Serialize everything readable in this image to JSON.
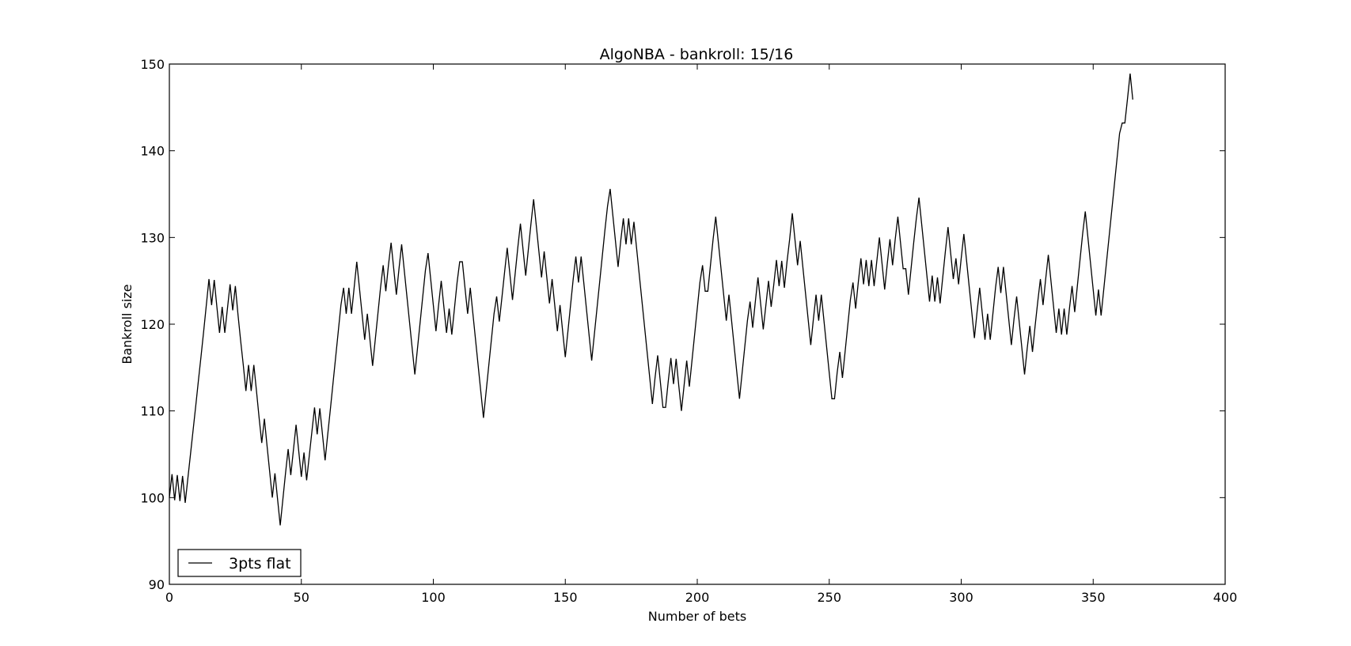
{
  "chart_data": {
    "type": "line",
    "title": "AlgoNBA - bankroll: 15/16",
    "xlabel": "Number of bets",
    "ylabel": "Bankroll size",
    "xlim": [
      0,
      400
    ],
    "ylim": [
      90,
      150
    ],
    "xticks": [
      0,
      50,
      100,
      150,
      200,
      250,
      300,
      350,
      400
    ],
    "yticks": [
      90,
      100,
      110,
      120,
      130,
      140,
      150
    ],
    "grid": false,
    "legend_position": "lower-left",
    "colors": {
      "line": "#000000",
      "frame": "#000000",
      "background": "#ffffff"
    },
    "series": [
      {
        "name": "3pts flat",
        "x": [
          0,
          1,
          2,
          3,
          4,
          5,
          6,
          7,
          8,
          9,
          10,
          11,
          12,
          13,
          14,
          15,
          16,
          17,
          18,
          19,
          20,
          21,
          22,
          23,
          24,
          25,
          26,
          27,
          28,
          29,
          30,
          31,
          32,
          33,
          34,
          35,
          36,
          37,
          38,
          39,
          40,
          41,
          42,
          43,
          44,
          45,
          46,
          47,
          48,
          49,
          50,
          51,
          52,
          53,
          54,
          55,
          56,
          57,
          58,
          59,
          60,
          61,
          62,
          63,
          64,
          65,
          66,
          67,
          68,
          69,
          70,
          71,
          72,
          73,
          74,
          75,
          76,
          77,
          78,
          79,
          80,
          81,
          82,
          83,
          84,
          85,
          86,
          87,
          88,
          89,
          90,
          91,
          92,
          93,
          94,
          95,
          96,
          97,
          98,
          99,
          100,
          101,
          102,
          103,
          104,
          105,
          106,
          107,
          108,
          109,
          110,
          111,
          112,
          113,
          114,
          115,
          116,
          117,
          118,
          119,
          120,
          121,
          122,
          123,
          124,
          125,
          126,
          127,
          128,
          129,
          130,
          131,
          132,
          133,
          134,
          135,
          136,
          137,
          138,
          139,
          140,
          141,
          142,
          143,
          144,
          145,
          146,
          147,
          148,
          149,
          150,
          151,
          152,
          153,
          154,
          155,
          156,
          157,
          158,
          159,
          160,
          161,
          162,
          163,
          164,
          165,
          166,
          167,
          168,
          169,
          170,
          171,
          172,
          173,
          174,
          175,
          176,
          177,
          178,
          179,
          180,
          181,
          182,
          183,
          184,
          185,
          186,
          187,
          188,
          189,
          190,
          191,
          192,
          193,
          194,
          195,
          196,
          197,
          198,
          199,
          200,
          201,
          202,
          203,
          204,
          205,
          206,
          207,
          208,
          209,
          210,
          211,
          212,
          213,
          214,
          215,
          216,
          217,
          218,
          219,
          220,
          221,
          222,
          223,
          224,
          225,
          226,
          227,
          228,
          229,
          230,
          231,
          232,
          233,
          234,
          235,
          236,
          237,
          238,
          239,
          240,
          241,
          242,
          243,
          244,
          245,
          246,
          247,
          248,
          249,
          250,
          251,
          252,
          253,
          254,
          255,
          256,
          257,
          258,
          259,
          260,
          261,
          262,
          263,
          264,
          265,
          266,
          267,
          268,
          269,
          270,
          271,
          272,
          273,
          274,
          275,
          276,
          277,
          278,
          279,
          280,
          281,
          282,
          283,
          284,
          285,
          286,
          287,
          288,
          289,
          290,
          291,
          292,
          293,
          294,
          295,
          296,
          297,
          298,
          299,
          300,
          301,
          302,
          303,
          304,
          305,
          306,
          307,
          308,
          309,
          310,
          311,
          312,
          313,
          314,
          315,
          316,
          317,
          318,
          319,
          320,
          321,
          322,
          323,
          324,
          325,
          326,
          327,
          328,
          329,
          330,
          331,
          332,
          333,
          334,
          335,
          336,
          337,
          338,
          339,
          340,
          341,
          342,
          343,
          344,
          345,
          346,
          347,
          348,
          349,
          350,
          351,
          352,
          353,
          354,
          355,
          356,
          357,
          358,
          359,
          360,
          361,
          362,
          363,
          364,
          365
        ],
        "y": [
          100.0,
          102.7,
          99.7,
          102.6,
          99.6,
          102.5,
          99.4,
          102.2,
          105.0,
          107.8,
          110.6,
          113.5,
          116.3,
          119.2,
          122.2,
          125.2,
          122.2,
          125.1,
          122.0,
          119.0,
          122.0,
          119.0,
          121.8,
          124.6,
          121.6,
          124.4,
          121.1,
          118.1,
          115.3,
          112.3,
          115.3,
          112.3,
          115.3,
          112.3,
          109.2,
          106.3,
          109.1,
          106.0,
          103.0,
          100.0,
          102.8,
          99.8,
          96.8,
          99.8,
          102.8,
          105.6,
          102.6,
          105.5,
          108.4,
          105.4,
          102.4,
          105.2,
          102.0,
          104.8,
          107.6,
          110.4,
          107.3,
          110.3,
          107.3,
          104.3,
          107.3,
          110.2,
          113.2,
          116.2,
          119.2,
          122.2,
          124.2,
          121.2,
          124.2,
          121.2,
          124.2,
          127.2,
          124.2,
          121.2,
          118.2,
          121.2,
          118.2,
          115.2,
          118.2,
          121.2,
          124.2,
          126.8,
          123.8,
          126.8,
          129.4,
          126.4,
          123.4,
          126.4,
          129.2,
          126.2,
          123.2,
          120.2,
          117.2,
          114.2,
          117.2,
          120.2,
          123.2,
          126.2,
          128.2,
          125.2,
          122.2,
          119.2,
          122.2,
          125.0,
          122.0,
          119.0,
          121.8,
          118.8,
          121.8,
          124.8,
          127.2,
          127.2,
          124.2,
          121.2,
          124.2,
          121.2,
          118.2,
          115.2,
          112.2,
          109.2,
          112.2,
          115.2,
          118.2,
          121.2,
          123.2,
          120.3,
          123.1,
          126.0,
          128.8,
          125.8,
          122.8,
          125.8,
          128.8,
          131.6,
          128.6,
          125.6,
          128.6,
          131.6,
          134.4,
          131.4,
          128.4,
          125.4,
          128.4,
          125.4,
          122.4,
          125.2,
          122.2,
          119.2,
          122.2,
          119.2,
          116.2,
          119.2,
          122.2,
          125.2,
          127.8,
          124.8,
          127.8,
          124.8,
          121.8,
          118.8,
          115.8,
          118.8,
          121.8,
          124.8,
          127.8,
          130.8,
          133.6,
          135.6,
          132.6,
          129.6,
          126.6,
          129.6,
          132.2,
          129.2,
          132.2,
          129.2,
          131.8,
          128.8,
          125.8,
          122.8,
          119.8,
          116.8,
          113.8,
          110.8,
          113.8,
          116.4,
          113.4,
          110.4,
          110.4,
          113.4,
          116.1,
          113.1,
          116.0,
          112.9,
          110.0,
          112.9,
          115.8,
          112.8,
          115.8,
          118.8,
          121.8,
          124.8,
          126.8,
          123.8,
          123.8,
          126.8,
          129.8,
          132.4,
          129.4,
          126.4,
          123.4,
          120.4,
          123.4,
          120.4,
          117.4,
          114.4,
          111.4,
          114.4,
          117.4,
          120.4,
          122.6,
          119.6,
          122.6,
          125.4,
          122.4,
          119.4,
          122.2,
          125.0,
          122.0,
          124.6,
          127.4,
          124.4,
          127.3,
          124.2,
          127.2,
          129.8,
          132.8,
          129.8,
          126.8,
          129.6,
          126.6,
          123.6,
          120.6,
          117.6,
          120.6,
          123.4,
          120.4,
          123.4,
          120.4,
          117.4,
          114.4,
          111.4,
          111.4,
          114.4,
          116.8,
          113.8,
          116.8,
          119.8,
          122.8,
          124.8,
          121.8,
          124.8,
          127.6,
          124.6,
          127.4,
          124.4,
          127.4,
          124.4,
          127.2,
          130.0,
          127.0,
          124.0,
          127.0,
          129.8,
          126.8,
          129.8,
          132.4,
          129.4,
          126.4,
          126.4,
          123.4,
          126.4,
          129.4,
          132.2,
          134.6,
          131.6,
          128.6,
          125.6,
          122.6,
          125.6,
          122.6,
          125.4,
          122.4,
          125.4,
          128.4,
          131.2,
          128.2,
          125.2,
          127.6,
          124.6,
          127.6,
          130.4,
          127.4,
          124.4,
          121.4,
          118.4,
          121.4,
          124.2,
          121.2,
          118.2,
          121.2,
          118.2,
          121.2,
          124.2,
          126.6,
          123.6,
          126.6,
          123.6,
          120.6,
          117.6,
          120.6,
          123.2,
          120.2,
          117.2,
          114.2,
          117.2,
          119.8,
          116.8,
          119.8,
          122.6,
          125.2,
          122.2,
          125.2,
          128.0,
          125.0,
          122.0,
          119.0,
          121.8,
          118.8,
          121.8,
          118.8,
          121.8,
          124.4,
          121.4,
          124.4,
          127.4,
          130.4,
          133.0,
          130.0,
          127.0,
          124.0,
          121.0,
          124.0,
          121.0,
          124.0,
          127.0,
          130.0,
          133.0,
          136.0,
          139.0,
          142.0,
          143.2,
          143.2,
          146.0,
          148.9,
          145.9
        ]
      }
    ]
  }
}
